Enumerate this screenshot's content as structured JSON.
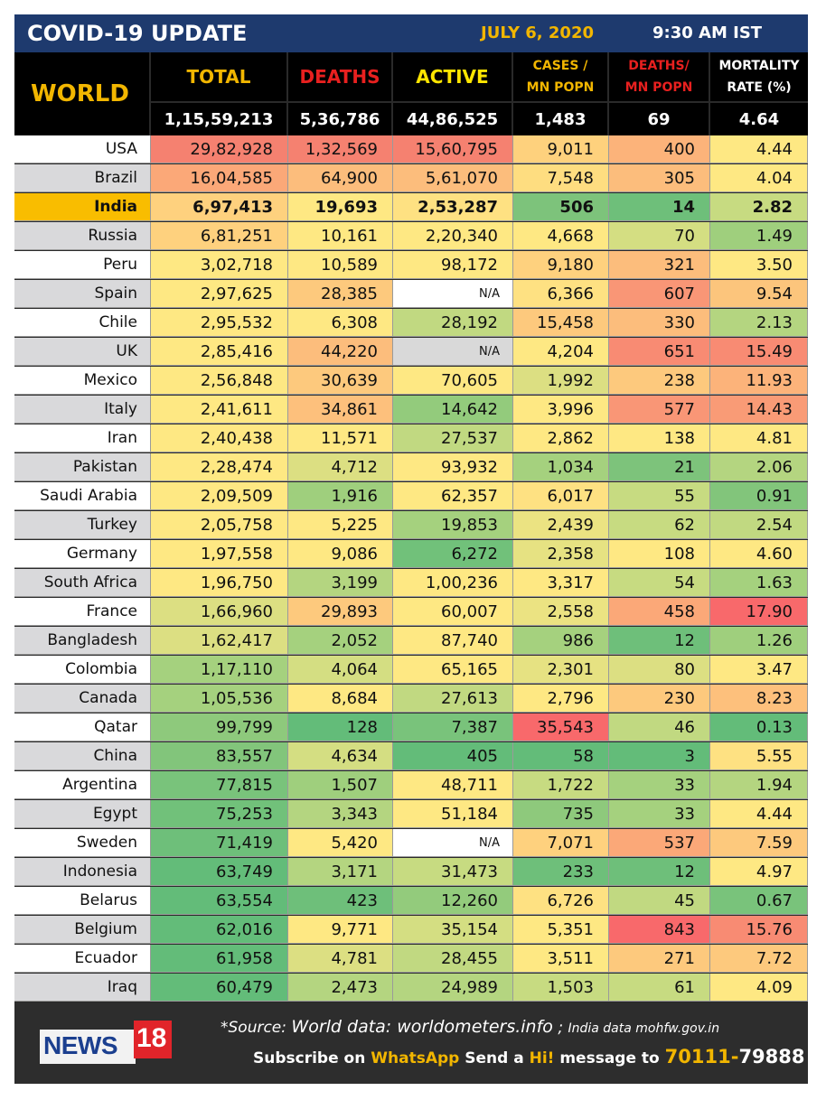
{
  "header": {
    "title": "COVID-19 UPDATE",
    "date": "JULY 6, 2020",
    "time": "9:30 AM IST"
  },
  "columns": {
    "world": "WORLD",
    "total": "TOTAL",
    "deaths": "DEATHS",
    "active": "ACTIVE",
    "cases_mn_1": "CASES /",
    "cases_mn_2": "MN POPN",
    "deaths_mn_1": "DEATHS/",
    "deaths_mn_2": "MN POPN",
    "mortality_1": "MORTALITY",
    "mortality_2": "RATE (%)"
  },
  "world_totals": {
    "total": "1,15,59,213",
    "deaths": "5,36,786",
    "active": "44,86,525",
    "cases_mn": "1,483",
    "deaths_mn": "69",
    "mortality": "4.64"
  },
  "colors": {
    "header_bg": "#1e3a6e",
    "gold": "#f2b600",
    "deaths_red": "#e8201f",
    "active_yellow": "#ffe600",
    "india_highlight": "#f9bd00"
  },
  "rows": [
    {
      "country": "USA",
      "total": "29,82,928",
      "deaths": "1,32,569",
      "active": "15,60,795",
      "cases_mn": "9,011",
      "deaths_mn": "400",
      "mortality": "4.44",
      "bg": [
        "#f58170",
        "#f58170",
        "#f58170",
        "#fed17d",
        "#fcb37a",
        "#fee883"
      ]
    },
    {
      "country": "Brazil",
      "total": "16,04,585",
      "deaths": "64,900",
      "active": "5,61,070",
      "cases_mn": "7,548",
      "deaths_mn": "305",
      "mortality": "4.04",
      "bg": [
        "#fba878",
        "#fcbd7c",
        "#fcbd7c",
        "#fedd80",
        "#fcbd7c",
        "#fee883"
      ]
    },
    {
      "country": "India",
      "total": "6,97,413",
      "deaths": "19,693",
      "active": "2,53,287",
      "cases_mn": "506",
      "deaths_mn": "14",
      "mortality": "2.82",
      "bg": [
        "#fed17e",
        "#fee883",
        "#fee182",
        "#7dc37b",
        "#6ebf7a",
        "#c7db81"
      ]
    },
    {
      "country": "Russia",
      "total": "6,81,251",
      "deaths": "10,161",
      "active": "2,20,340",
      "cases_mn": "4,668",
      "deaths_mn": "70",
      "mortality": "1.49",
      "bg": [
        "#fed17e",
        "#fee883",
        "#fee883",
        "#fee883",
        "#d4de82",
        "#9fcf7d"
      ]
    },
    {
      "country": "Peru",
      "total": "3,02,718",
      "deaths": "10,589",
      "active": "98,172",
      "cases_mn": "9,180",
      "deaths_mn": "321",
      "mortality": "3.50",
      "bg": [
        "#fee883",
        "#fee883",
        "#fee883",
        "#fed17e",
        "#fcbd7c",
        "#fee883"
      ]
    },
    {
      "country": "Spain",
      "total": "2,97,625",
      "deaths": "28,385",
      "active": "N/A",
      "cases_mn": "6,366",
      "deaths_mn": "607",
      "mortality": "9.54",
      "bg": [
        "#fee883",
        "#fdc97d",
        "#ffffff",
        "#fee182",
        "#f99676",
        "#fcc57c"
      ]
    },
    {
      "country": "Chile",
      "total": "2,95,532",
      "deaths": "6,308",
      "active": "28,192",
      "cases_mn": "15,458",
      "deaths_mn": "330",
      "mortality": "2.13",
      "bg": [
        "#fee883",
        "#fee883",
        "#c1d981",
        "#fdc97d",
        "#fcbd7c",
        "#b4d580"
      ]
    },
    {
      "country": "UK",
      "total": "2,85,416",
      "deaths": "44,220",
      "active": "N/A",
      "cases_mn": "4,204",
      "deaths_mn": "651",
      "mortality": "15.49",
      "bg": [
        "#fee883",
        "#fcbd7c",
        "#d9d9d9",
        "#fee883",
        "#f88b73",
        "#f88b73"
      ]
    },
    {
      "country": "Mexico",
      "total": "2,56,848",
      "deaths": "30,639",
      "active": "70,605",
      "cases_mn": "1,992",
      "deaths_mn": "238",
      "mortality": "11.93",
      "bg": [
        "#fee883",
        "#fdc97d",
        "#fee883",
        "#dcdf82",
        "#fdc97d",
        "#fcb37a"
      ]
    },
    {
      "country": "Italy",
      "total": "2,41,611",
      "deaths": "34,861",
      "active": "14,642",
      "cases_mn": "3,996",
      "deaths_mn": "577",
      "mortality": "14.43",
      "bg": [
        "#fee883",
        "#fdc07c",
        "#93cb7c",
        "#fee883",
        "#f99676",
        "#f99b76"
      ]
    },
    {
      "country": "Iran",
      "total": "2,40,438",
      "deaths": "11,571",
      "active": "27,537",
      "cases_mn": "2,862",
      "deaths_mn": "138",
      "mortality": "4.81",
      "bg": [
        "#fee883",
        "#fee883",
        "#c1d981",
        "#fee883",
        "#fee883",
        "#fee883"
      ]
    },
    {
      "country": "Pakistan",
      "total": "2,28,474",
      "deaths": "4,712",
      "active": "93,932",
      "cases_mn": "1,034",
      "deaths_mn": "21",
      "mortality": "2.06",
      "bg": [
        "#fee883",
        "#dcdf82",
        "#fee883",
        "#a5d17e",
        "#7dc37b",
        "#b4d580"
      ]
    },
    {
      "country": "Saudi Arabia",
      "total": "2,09,509",
      "deaths": "1,916",
      "active": "62,357",
      "cases_mn": "6,017",
      "deaths_mn": "55",
      "mortality": "0.91",
      "bg": [
        "#fee883",
        "#9fcf7d",
        "#fee883",
        "#fee182",
        "#c7db81",
        "#82c57b"
      ]
    },
    {
      "country": "Turkey",
      "total": "2,05,758",
      "deaths": "5,225",
      "active": "19,853",
      "cases_mn": "2,439",
      "deaths_mn": "62",
      "mortality": "2.54",
      "bg": [
        "#fee883",
        "#fee883",
        "#a5d17e",
        "#ebe382",
        "#c7db81",
        "#c1d981"
      ]
    },
    {
      "country": "Germany",
      "total": "1,97,558",
      "deaths": "9,086",
      "active": "6,272",
      "cases_mn": "2,358",
      "deaths_mn": "108",
      "mortality": "4.60",
      "bg": [
        "#fee883",
        "#fee883",
        "#71c17a",
        "#e6e282",
        "#fee883",
        "#fee883"
      ]
    },
    {
      "country": "South Africa",
      "total": "1,96,750",
      "deaths": "3,199",
      "active": "1,00,236",
      "cases_mn": "3,317",
      "deaths_mn": "54",
      "mortality": "1.63",
      "bg": [
        "#fee883",
        "#b4d580",
        "#fee883",
        "#fee883",
        "#c7db81",
        "#a5d17e"
      ]
    },
    {
      "country": "France",
      "total": "1,66,960",
      "deaths": "29,893",
      "active": "60,007",
      "cases_mn": "2,558",
      "deaths_mn": "458",
      "mortality": "17.90",
      "bg": [
        "#dcdf82",
        "#fdc97d",
        "#fee883",
        "#ebe382",
        "#fba878",
        "#f8696b"
      ]
    },
    {
      "country": "Bangladesh",
      "total": "1,62,417",
      "deaths": "2,052",
      "active": "87,740",
      "cases_mn": "986",
      "deaths_mn": "12",
      "mortality": "1.26",
      "bg": [
        "#dcdf82",
        "#a5d17e",
        "#fee883",
        "#a5d17e",
        "#6ebf7a",
        "#9fcf7d"
      ]
    },
    {
      "country": "Colombia",
      "total": "1,17,110",
      "deaths": "4,064",
      "active": "65,165",
      "cases_mn": "2,301",
      "deaths_mn": "80",
      "mortality": "3.47",
      "bg": [
        "#a5d17e",
        "#d4de82",
        "#fee883",
        "#e6e282",
        "#dcdf82",
        "#fee883"
      ]
    },
    {
      "country": "Canada",
      "total": "1,05,536",
      "deaths": "8,684",
      "active": "27,613",
      "cases_mn": "2,796",
      "deaths_mn": "230",
      "mortality": "8.23",
      "bg": [
        "#a5d17e",
        "#fee883",
        "#c1d981",
        "#fee883",
        "#fdc97d",
        "#fdc07c"
      ]
    },
    {
      "country": "Qatar",
      "total": "99,799",
      "deaths": "128",
      "active": "7,387",
      "cases_mn": "35,543",
      "deaths_mn": "46",
      "mortality": "0.13",
      "bg": [
        "#8ec97c",
        "#63bc79",
        "#79c37b",
        "#f8696b",
        "#c1d981",
        "#63bc79"
      ]
    },
    {
      "country": "China",
      "total": "83,557",
      "deaths": "4,634",
      "active": "405",
      "cases_mn": "58",
      "deaths_mn": "3",
      "mortality": "5.55",
      "bg": [
        "#82c57b",
        "#d4de82",
        "#63bc79",
        "#63bc79",
        "#63bc79",
        "#fee182"
      ]
    },
    {
      "country": "Argentina",
      "total": "77,815",
      "deaths": "1,507",
      "active": "48,711",
      "cases_mn": "1,722",
      "deaths_mn": "33",
      "mortality": "1.94",
      "bg": [
        "#79c37b",
        "#9fcf7d",
        "#fee883",
        "#c7db81",
        "#a5d17e",
        "#b4d580"
      ]
    },
    {
      "country": "Egypt",
      "total": "75,253",
      "deaths": "3,343",
      "active": "51,184",
      "cases_mn": "735",
      "deaths_mn": "33",
      "mortality": "4.44",
      "bg": [
        "#71c17a",
        "#b4d580",
        "#fee883",
        "#8ec97c",
        "#a5d17e",
        "#fee883"
      ]
    },
    {
      "country": "Sweden",
      "total": "71,419",
      "deaths": "5,420",
      "active": "N/A",
      "cases_mn": "7,071",
      "deaths_mn": "537",
      "mortality": "7.59",
      "bg": [
        "#6ebf7a",
        "#fee883",
        "#ffffff",
        "#fed17e",
        "#fba878",
        "#fdc97d"
      ]
    },
    {
      "country": "Indonesia",
      "total": "63,749",
      "deaths": "3,171",
      "active": "31,473",
      "cases_mn": "233",
      "deaths_mn": "12",
      "mortality": "4.97",
      "bg": [
        "#63bc79",
        "#b4d580",
        "#c7db81",
        "#6ebf7a",
        "#6ebf7a",
        "#fee883"
      ]
    },
    {
      "country": "Belarus",
      "total": "63,554",
      "deaths": "423",
      "active": "12,260",
      "cases_mn": "6,726",
      "deaths_mn": "45",
      "mortality": "0.67",
      "bg": [
        "#63bc79",
        "#6ebf7a",
        "#93cb7c",
        "#fee182",
        "#c1d981",
        "#79c37b"
      ]
    },
    {
      "country": "Belgium",
      "total": "62,016",
      "deaths": "9,771",
      "active": "35,154",
      "cases_mn": "5,351",
      "deaths_mn": "843",
      "mortality": "15.76",
      "bg": [
        "#63bc79",
        "#fee883",
        "#d4de82",
        "#fee883",
        "#f8696b",
        "#f88b73"
      ]
    },
    {
      "country": "Ecuador",
      "total": "61,958",
      "deaths": "4,781",
      "active": "28,455",
      "cases_mn": "3,511",
      "deaths_mn": "271",
      "mortality": "7.72",
      "bg": [
        "#63bc79",
        "#dcdf82",
        "#c1d981",
        "#fee883",
        "#fdc97d",
        "#fdc97d"
      ]
    },
    {
      "country": "Iraq",
      "total": "60,479",
      "deaths": "2,473",
      "active": "24,989",
      "cases_mn": "1,503",
      "deaths_mn": "61",
      "mortality": "4.09",
      "bg": [
        "#63bc79",
        "#b4d580",
        "#b4d580",
        "#c7db81",
        "#c7db81",
        "#fee883"
      ]
    }
  ],
  "footer": {
    "logo_text": "NEWS",
    "logo_number": "18",
    "source_label": "*Source:",
    "source_world": "World data: worldometers.info",
    "source_sep": ";",
    "source_india": "India data mohfw.gov.in",
    "subscribe_1": "Subscribe on",
    "subscribe_whatsapp": "WhatsApp",
    "subscribe_2": "Send a",
    "subscribe_hi": "Hi!",
    "subscribe_3": "message to",
    "phone_1": "70111-",
    "phone_2": "79888"
  }
}
